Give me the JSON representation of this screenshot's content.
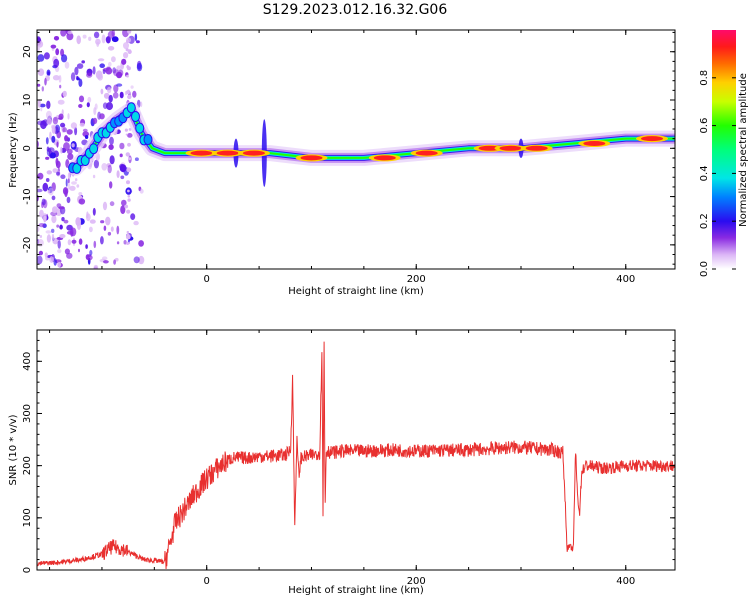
{
  "title": "S129.2023.012.16.32.G06",
  "chart_data": [
    {
      "type": "heatmap",
      "xlabel": "Height of straight line (km)",
      "ylabel": "Frequency (Hz)",
      "xlim": [
        -162,
        447
      ],
      "ylim": [
        -25,
        24.5
      ],
      "xticks": [
        0,
        200,
        400
      ],
      "yticks": [
        -20,
        -10,
        0,
        10,
        20
      ],
      "colorbar": {
        "label": "Normalized spectral amplitude",
        "range": [
          0,
          1
        ],
        "ticks": [
          0.0,
          0.2,
          0.4,
          0.6,
          0.8
        ]
      },
      "ridge": [
        {
          "x": -125,
          "y": -4
        },
        {
          "x": -112,
          "y": -1
        },
        {
          "x": -100,
          "y": 3
        },
        {
          "x": -85,
          "y": 6
        },
        {
          "x": -72,
          "y": 8
        },
        {
          "x": -62,
          "y": 3
        },
        {
          "x": -52,
          "y": 0
        },
        {
          "x": -40,
          "y": -1
        },
        {
          "x": -20,
          "y": -1
        },
        {
          "x": 30,
          "y": -1
        },
        {
          "x": 60,
          "y": -1
        },
        {
          "x": 100,
          "y": -2
        },
        {
          "x": 150,
          "y": -2
        },
        {
          "x": 200,
          "y": -1
        },
        {
          "x": 250,
          "y": 0
        },
        {
          "x": 300,
          "y": 0
        },
        {
          "x": 350,
          "y": 1
        },
        {
          "x": 400,
          "y": 2
        },
        {
          "x": 447,
          "y": 2
        }
      ],
      "hotspots": [
        {
          "x": -5,
          "y": -1
        },
        {
          "x": 20,
          "y": -1
        },
        {
          "x": 45,
          "y": -1
        },
        {
          "x": 100,
          "y": -2
        },
        {
          "x": 170,
          "y": -2
        },
        {
          "x": 210,
          "y": -1
        },
        {
          "x": 270,
          "y": 0
        },
        {
          "x": 290,
          "y": 0
        },
        {
          "x": 315,
          "y": 0
        },
        {
          "x": 370,
          "y": 1
        },
        {
          "x": 425,
          "y": 2
        }
      ]
    },
    {
      "type": "line",
      "xlabel": "Height of straight line (km)",
      "ylabel": "SNR (10 * v/v)",
      "xlim": [
        -162,
        447
      ],
      "ylim": [
        0,
        460
      ],
      "xticks": [
        0,
        200,
        400
      ],
      "yticks": [
        0,
        100,
        200,
        300,
        400
      ],
      "color": "#e8302f",
      "series": [
        {
          "x": [
            -162,
            -140,
            -120,
            -100,
            -90,
            -80,
            -70,
            -60,
            -50,
            -40,
            -35,
            -30,
            -20,
            -10,
            0,
            10,
            20,
            25,
            30,
            40,
            50,
            60,
            70,
            75,
            80,
            82,
            84,
            86,
            88,
            90,
            100,
            108,
            110,
            111,
            112,
            113,
            114,
            115,
            118,
            130,
            150,
            180,
            200,
            250,
            290,
            300,
            330,
            340,
            342,
            344,
            346,
            350,
            352,
            354,
            356,
            358,
            362,
            365,
            370,
            380,
            400,
            420,
            447
          ],
          "y": [
            12,
            15,
            20,
            30,
            45,
            40,
            30,
            20,
            18,
            15,
            50,
            90,
            120,
            150,
            175,
            195,
            210,
            215,
            215,
            215,
            218,
            218,
            220,
            220,
            230,
            370,
            80,
            250,
            180,
            215,
            220,
            225,
            440,
            100,
            450,
            120,
            225,
            230,
            225,
            228,
            228,
            230,
            228,
            230,
            235,
            235,
            230,
            225,
            140,
            40,
            45,
            40,
            230,
            140,
            110,
            190,
            200,
            200,
            198,
            195,
            200,
            200,
            200
          ]
        }
      ]
    }
  ]
}
